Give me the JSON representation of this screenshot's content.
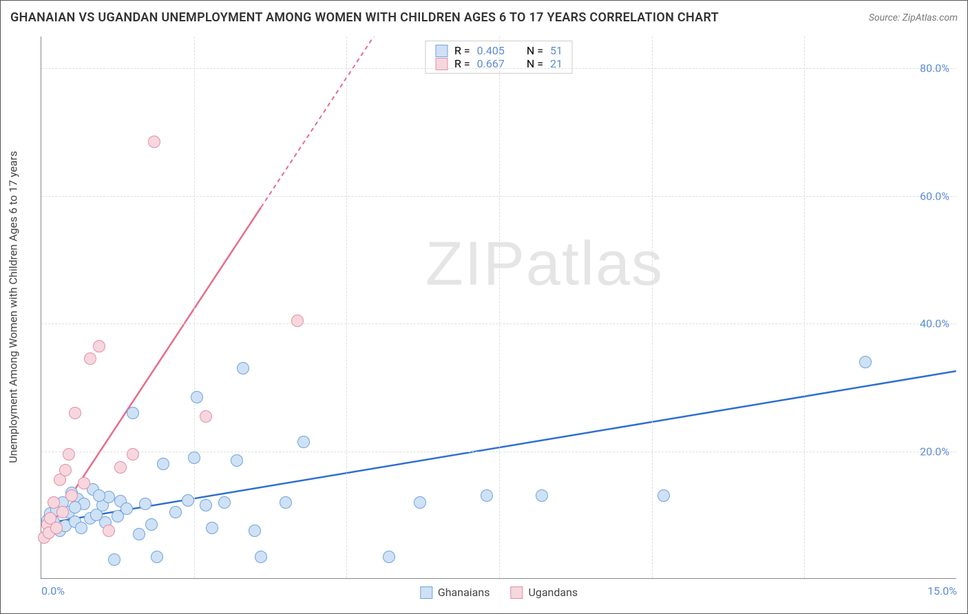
{
  "title": "GHANAIAN VS UGANDAN UNEMPLOYMENT AMONG WOMEN WITH CHILDREN AGES 6 TO 17 YEARS CORRELATION CHART",
  "source": "Source: ZipAtlas.com",
  "ylabel": "Unemployment Among Women with Children Ages 6 to 17 years",
  "watermark_bold": "ZIP",
  "watermark_light": "atlas",
  "chart": {
    "type": "scatter",
    "xlim": [
      0,
      15
    ],
    "ylim": [
      0,
      85
    ],
    "xticks": [
      0.0,
      15.0
    ],
    "xtick_labels": [
      "0.0%",
      "15.0%"
    ],
    "x_grid_steps": [
      2.5,
      5.0,
      7.5,
      10.0,
      12.5
    ],
    "yticks": [
      20.0,
      40.0,
      60.0,
      80.0
    ],
    "ytick_labels": [
      "20.0%",
      "40.0%",
      "60.0%",
      "80.0%"
    ],
    "background_color": "#ffffff",
    "grid_color": "#dddddd",
    "axis_color": "#888888",
    "marker_radius": 9,
    "marker_border_width": 1.5,
    "series": [
      {
        "name": "Ghanaians",
        "fill": "#cfe1f5",
        "border": "#6ea2dd",
        "trend_color": "#2e6fd0",
        "r": "0.405",
        "n": "51",
        "trend": {
          "slope": 1.6,
          "intercept": 8.5,
          "dashed_after_x": null
        },
        "points": [
          [
            0.1,
            9.2
          ],
          [
            0.15,
            10.2
          ],
          [
            0.18,
            8.6
          ],
          [
            0.2,
            9.0
          ],
          [
            0.25,
            10.8
          ],
          [
            0.3,
            7.5
          ],
          [
            0.35,
            12.0
          ],
          [
            0.4,
            8.3
          ],
          [
            0.45,
            10.5
          ],
          [
            0.5,
            13.5
          ],
          [
            0.55,
            9.0
          ],
          [
            0.6,
            12.5
          ],
          [
            0.65,
            8.0
          ],
          [
            0.7,
            11.8
          ],
          [
            0.8,
            9.5
          ],
          [
            0.85,
            14.0
          ],
          [
            0.9,
            10.0
          ],
          [
            1.0,
            11.5
          ],
          [
            1.05,
            8.8
          ],
          [
            1.1,
            12.8
          ],
          [
            1.2,
            3.0
          ],
          [
            1.25,
            9.8
          ],
          [
            1.3,
            12.2
          ],
          [
            1.4,
            11.0
          ],
          [
            1.5,
            26.0
          ],
          [
            1.6,
            7.0
          ],
          [
            1.7,
            11.8
          ],
          [
            1.8,
            8.5
          ],
          [
            1.9,
            3.5
          ],
          [
            2.0,
            18.0
          ],
          [
            2.2,
            10.5
          ],
          [
            2.4,
            12.3
          ],
          [
            2.5,
            19.0
          ],
          [
            2.55,
            28.5
          ],
          [
            2.7,
            11.5
          ],
          [
            2.8,
            8.0
          ],
          [
            3.0,
            12.0
          ],
          [
            3.2,
            18.5
          ],
          [
            3.3,
            33.0
          ],
          [
            3.5,
            7.5
          ],
          [
            3.6,
            3.5
          ],
          [
            4.0,
            12.0
          ],
          [
            4.3,
            21.5
          ],
          [
            5.7,
            3.5
          ],
          [
            6.2,
            12.0
          ],
          [
            7.3,
            13.0
          ],
          [
            8.2,
            13.0
          ],
          [
            10.2,
            13.0
          ],
          [
            13.5,
            34.0
          ],
          [
            0.55,
            11.2
          ],
          [
            0.95,
            13.0
          ]
        ]
      },
      {
        "name": "Ugandans",
        "fill": "#f6d7de",
        "border": "#e48ca3",
        "trend_color": "#e76b8a",
        "r": "0.667",
        "n": "21",
        "trend": {
          "slope": 14.5,
          "intercept": 6.0,
          "dashed_after_x": 3.6
        },
        "points": [
          [
            0.05,
            6.5
          ],
          [
            0.1,
            8.5
          ],
          [
            0.12,
            7.2
          ],
          [
            0.15,
            9.5
          ],
          [
            0.2,
            12.0
          ],
          [
            0.25,
            8.0
          ],
          [
            0.3,
            15.5
          ],
          [
            0.35,
            10.5
          ],
          [
            0.4,
            17.0
          ],
          [
            0.45,
            19.5
          ],
          [
            0.5,
            13.0
          ],
          [
            0.55,
            26.0
          ],
          [
            0.7,
            15.0
          ],
          [
            0.8,
            34.5
          ],
          [
            0.95,
            36.5
          ],
          [
            1.1,
            7.5
          ],
          [
            1.3,
            17.5
          ],
          [
            1.5,
            19.5
          ],
          [
            1.85,
            68.5
          ],
          [
            2.7,
            25.5
          ],
          [
            4.2,
            40.5
          ]
        ]
      }
    ]
  },
  "top_legend": {
    "r_label": "R =",
    "n_label": "N ="
  },
  "bottom_legend": {
    "items": [
      "Ghanaians",
      "Ugandans"
    ]
  }
}
